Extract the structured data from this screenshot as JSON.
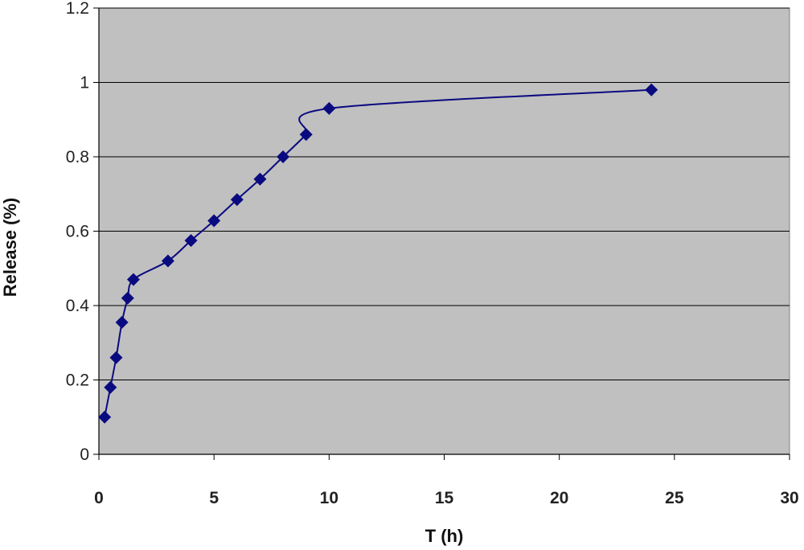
{
  "chart_data": {
    "type": "line",
    "title": "",
    "xlabel": "T (h)",
    "ylabel": "Release (%)",
    "xlim": [
      0,
      30
    ],
    "ylim": [
      0,
      1.2
    ],
    "x_ticks": [
      "0",
      "5",
      "10",
      "15",
      "20",
      "25",
      "30"
    ],
    "y_ticks": [
      "0",
      "0.2",
      "0.4",
      "0.6",
      "0.8",
      "1",
      "1.2"
    ],
    "grid": "horizontal",
    "colors": {
      "plot_background": "#c0c0c0",
      "series": "#0a0a80",
      "gridline": "#000000"
    },
    "series": [
      {
        "marker": "diamond",
        "x": [
          0.25,
          0.5,
          0.75,
          1,
          1.25,
          1.5,
          3,
          4,
          5,
          6,
          7,
          8,
          9,
          10,
          24
        ],
        "y": [
          0.1,
          0.18,
          0.26,
          0.355,
          0.42,
          0.47,
          0.52,
          0.575,
          0.628,
          0.685,
          0.74,
          0.8,
          0.86,
          0.93,
          0.98
        ]
      }
    ]
  }
}
